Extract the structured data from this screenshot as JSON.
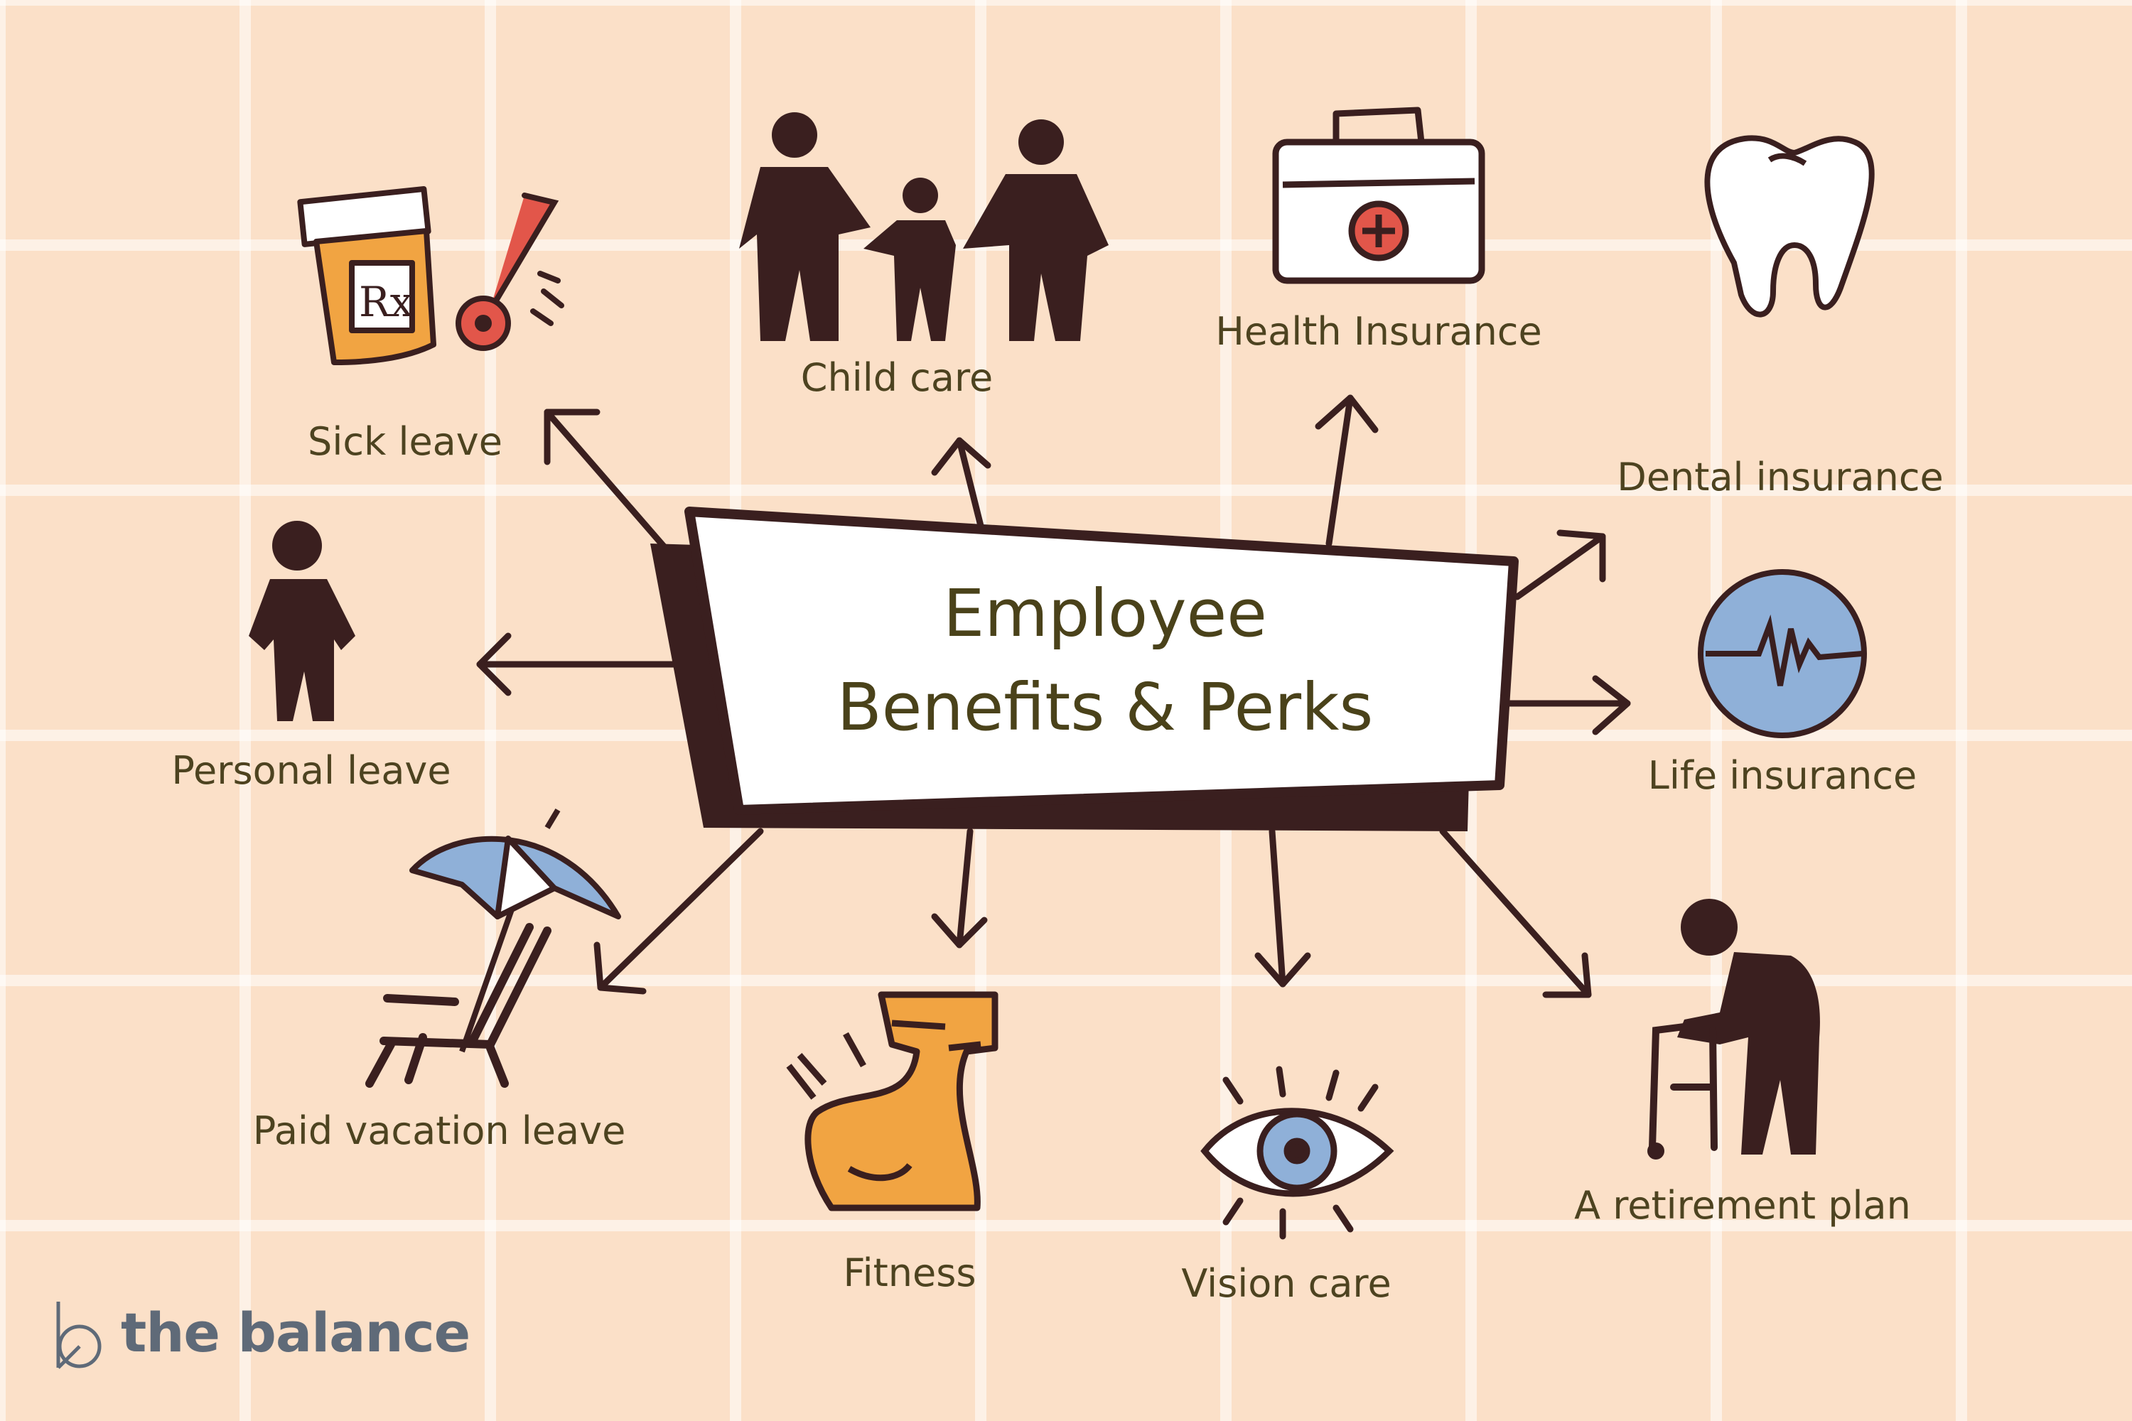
{
  "title": {
    "line1": "Employee",
    "line2": "Benefits & Perks"
  },
  "benefits": {
    "sick_leave": "Sick leave",
    "child_care": "Child care",
    "health_insurance": "Health Insurance",
    "dental_insurance": "Dental insurance",
    "life_insurance": "Life insurance",
    "personal_leave": "Personal leave",
    "paid_vacation_leave": "Paid vacation leave",
    "fitness": "Fitness",
    "vision_care": "Vision care",
    "retirement_plan": "A retirement plan"
  },
  "brand": {
    "name": "the balance"
  },
  "colors": {
    "background": "#fbe0c8",
    "grid": "#ffffff",
    "ink": "#3a1f1f",
    "text": "#4d4320",
    "accent_orange": "#f1a442",
    "accent_blue": "#8fb0d8",
    "accent_red": "#e2564a",
    "brand_gray": "#5f6a78"
  },
  "icons": [
    "pill-bottle-icon",
    "thermometer-icon",
    "family-icon",
    "first-aid-kit-icon",
    "tooth-icon",
    "heartbeat-icon",
    "person-icon",
    "beach-umbrella-icon",
    "beach-chair-icon",
    "flexed-arm-icon",
    "eye-icon",
    "elderly-walker-icon",
    "balance-logo-icon"
  ]
}
